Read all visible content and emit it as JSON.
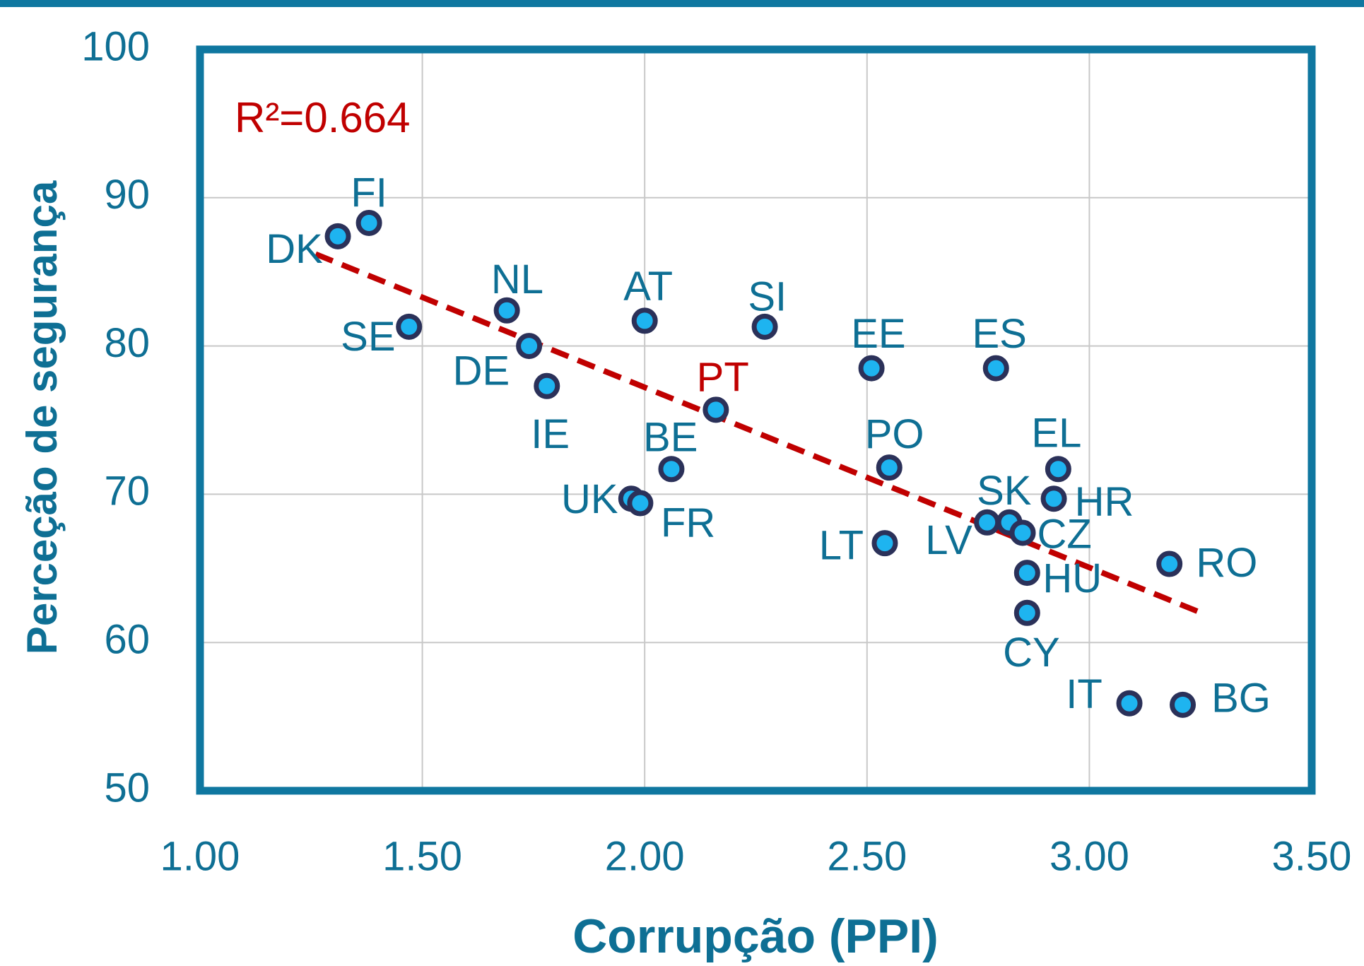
{
  "chart_data": {
    "type": "scatter",
    "xlabel": "Corrupção (PPI)",
    "ylabel": "Perceção de segurança",
    "annotation": "R²=0.664",
    "annotation_color": "#c00000",
    "labels": [
      "DK",
      "FI",
      "SE",
      "NL",
      "DE",
      "IE",
      "AT",
      "SI",
      "EE",
      "ES",
      "PT",
      "BE",
      "UK",
      "FR",
      "PO",
      "LT",
      "LV",
      "SK",
      "CZ",
      "EL",
      "HR",
      "HU",
      "CY",
      "RO",
      "IT",
      "BG"
    ],
    "x": [
      1.31,
      1.38,
      1.47,
      1.69,
      1.74,
      1.78,
      2.0,
      2.27,
      2.51,
      2.79,
      2.16,
      2.06,
      1.97,
      1.99,
      2.55,
      2.54,
      2.77,
      2.82,
      2.85,
      2.93,
      2.92,
      2.86,
      2.86,
      3.18,
      3.09,
      3.21
    ],
    "y": [
      87.4,
      88.3,
      81.3,
      82.4,
      80.0,
      77.3,
      81.7,
      81.3,
      78.5,
      78.5,
      75.7,
      71.7,
      69.7,
      69.4,
      71.8,
      66.7,
      68.1,
      68.1,
      67.4,
      71.7,
      69.7,
      64.7,
      62.0,
      65.3,
      55.9,
      55.8
    ],
    "color": "#1eb4f0",
    "edge_color": "#2b3159",
    "label_color": "#0e6f94",
    "highlight": {
      "index": 10,
      "color": "#c00000"
    },
    "trendline": {
      "x": [
        1.26,
        3.26
      ],
      "y": [
        86.2,
        61.9
      ],
      "color": "#c00000"
    },
    "xlim": [
      1.0,
      3.5
    ],
    "xticks": [
      {
        "value": 1.0,
        "label": "1.00"
      },
      {
        "value": 1.5,
        "label": "1.50"
      },
      {
        "value": 2.0,
        "label": "2.00"
      },
      {
        "value": 2.5,
        "label": "2.50"
      },
      {
        "value": 3.0,
        "label": "3.00"
      },
      {
        "value": 3.5,
        "label": "3.50"
      }
    ],
    "ylim": [
      50,
      100
    ],
    "yticks": [
      50,
      60,
      70,
      80,
      90,
      100
    ],
    "grid": true
  }
}
